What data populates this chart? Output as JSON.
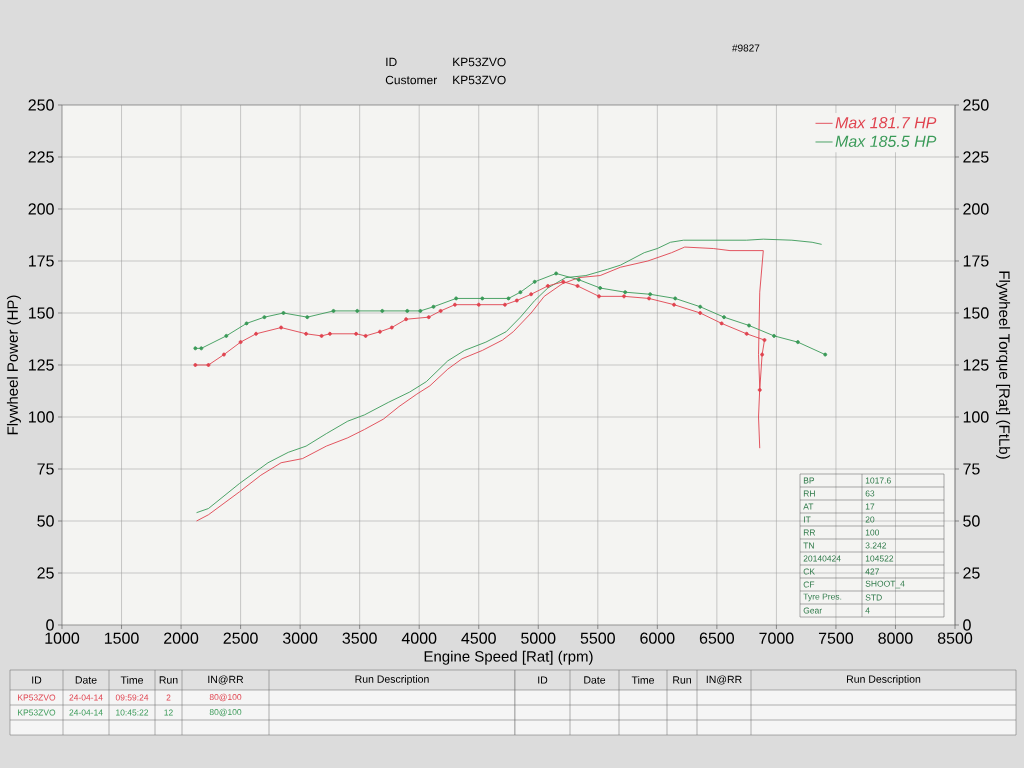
{
  "chart_data": {
    "type": "line",
    "xlabel": "Engine Speed [Rat] (rpm)",
    "ylabel": "Flywheel Power (HP)",
    "y2label": "Flywheel Torque [Rat] (FtLb)",
    "xlim": [
      1000,
      8500
    ],
    "xticks": [
      1000,
      1500,
      2000,
      2500,
      3000,
      3500,
      4000,
      4500,
      5000,
      5500,
      6000,
      6500,
      7000,
      7500,
      8000,
      8500
    ],
    "ylim": [
      0,
      250
    ],
    "yticks": [
      0,
      25,
      50,
      75,
      100,
      125,
      150,
      175,
      200,
      225,
      250
    ],
    "y2lim": [
      0,
      250
    ],
    "y2ticks": [
      0,
      25,
      50,
      75,
      100,
      125,
      150,
      175,
      200,
      225,
      250
    ],
    "grid": true,
    "legend": "top right",
    "series": [
      {
        "name": "Max 181.7 HP",
        "color": "#e0434f",
        "x": [
          2130,
          2230,
          2490,
          2670,
          2840,
          3020,
          3220,
          3400,
          3540,
          3700,
          3830,
          3980,
          4090,
          4240,
          4360,
          4530,
          4700,
          4790,
          4940,
          5050,
          5200,
          5340,
          5520,
          5690,
          5920,
          6120,
          6230,
          6470,
          6610,
          6750,
          6890,
          6860,
          6850,
          6860,
          6850,
          6860
        ],
        "values": [
          50,
          53,
          64,
          72,
          78,
          80,
          86,
          90,
          94,
          99,
          105,
          111,
          115,
          123,
          128,
          132,
          137,
          141,
          150,
          158,
          164,
          167,
          168,
          172,
          175,
          179,
          181.7,
          181,
          180,
          180,
          180,
          160,
          130,
          114,
          100,
          85
        ]
      },
      {
        "name": "Max 185.5 HP",
        "color": "#3a9a58",
        "x": [
          2130,
          2230,
          2490,
          2730,
          2900,
          3050,
          3220,
          3400,
          3540,
          3740,
          3920,
          4060,
          4240,
          4380,
          4560,
          4730,
          4850,
          4970,
          5080,
          5230,
          5400,
          5580,
          5690,
          5890,
          6000,
          6110,
          6220,
          6470,
          6750,
          6890,
          7130,
          7300,
          7380
        ],
        "values": [
          54,
          56,
          68,
          78,
          83,
          86,
          92,
          98,
          101,
          107,
          112,
          117,
          127,
          132,
          136,
          141,
          148,
          156,
          162,
          167,
          168,
          171,
          173,
          179,
          181,
          184,
          185,
          185,
          185,
          185.5,
          185,
          184,
          183
        ]
      },
      {
        "color": "#e0434f",
        "axis": "y2",
        "marker": "circle",
        "x": [
          2120,
          2230,
          2360,
          2500,
          2630,
          2840,
          3050,
          3180,
          3250,
          3470,
          3550,
          3670,
          3770,
          3890,
          4080,
          4180,
          4300,
          4500,
          4720,
          4820,
          4940,
          5080,
          5210,
          5330,
          5510,
          5720,
          5930,
          6140,
          6360,
          6540,
          6750,
          6900,
          6880,
          6860
        ],
        "values": [
          125,
          125,
          130,
          136,
          140,
          143,
          140,
          139,
          140,
          140,
          139,
          141,
          143,
          147,
          148,
          151,
          154,
          154,
          154,
          156,
          159,
          163,
          165,
          163,
          158,
          158,
          157,
          154,
          150,
          145,
          140,
          137,
          130,
          113
        ]
      },
      {
        "color": "#3a9a58",
        "axis": "y2",
        "marker": "circle",
        "x": [
          2120,
          2170,
          2380,
          2550,
          2700,
          2860,
          3060,
          3280,
          3480,
          3690,
          3900,
          4010,
          4120,
          4310,
          4530,
          4750,
          4850,
          4970,
          5150,
          5340,
          5520,
          5730,
          5940,
          6150,
          6360,
          6560,
          6770,
          6980,
          7180,
          7410
        ],
        "values": [
          133,
          133,
          139,
          145,
          148,
          150,
          148,
          151,
          151,
          151,
          151,
          151,
          153,
          157,
          157,
          157,
          160,
          165,
          169,
          166,
          162,
          160,
          159,
          157,
          153,
          148,
          144,
          139,
          136,
          130
        ]
      }
    ],
    "annotations": [
      "ID",
      "KP53ZVO",
      "Customer",
      "KP53ZVO",
      "#9827",
      "BP",
      "1017.6",
      "RH",
      "63",
      "AT",
      "17",
      "IT",
      "20",
      "RR",
      "100",
      "TN",
      "3.242",
      "20140424",
      "104522",
      "CK",
      "427",
      "CF",
      "SHOOT_4",
      "Tyre Pres.",
      "STD",
      "Gear",
      "4",
      "ID",
      "Date",
      "Time",
      "Run",
      "IN@RR",
      "Run Description",
      "KP53ZVO",
      "24-04-14",
      "09:59:24",
      "2",
      "80@100",
      "KP53ZVO",
      "24-04-14",
      "10:45:22",
      "12",
      "80@100",
      "ID",
      "Date",
      "Time",
      "Run",
      "IN@RR",
      "Run Description"
    ]
  }
}
